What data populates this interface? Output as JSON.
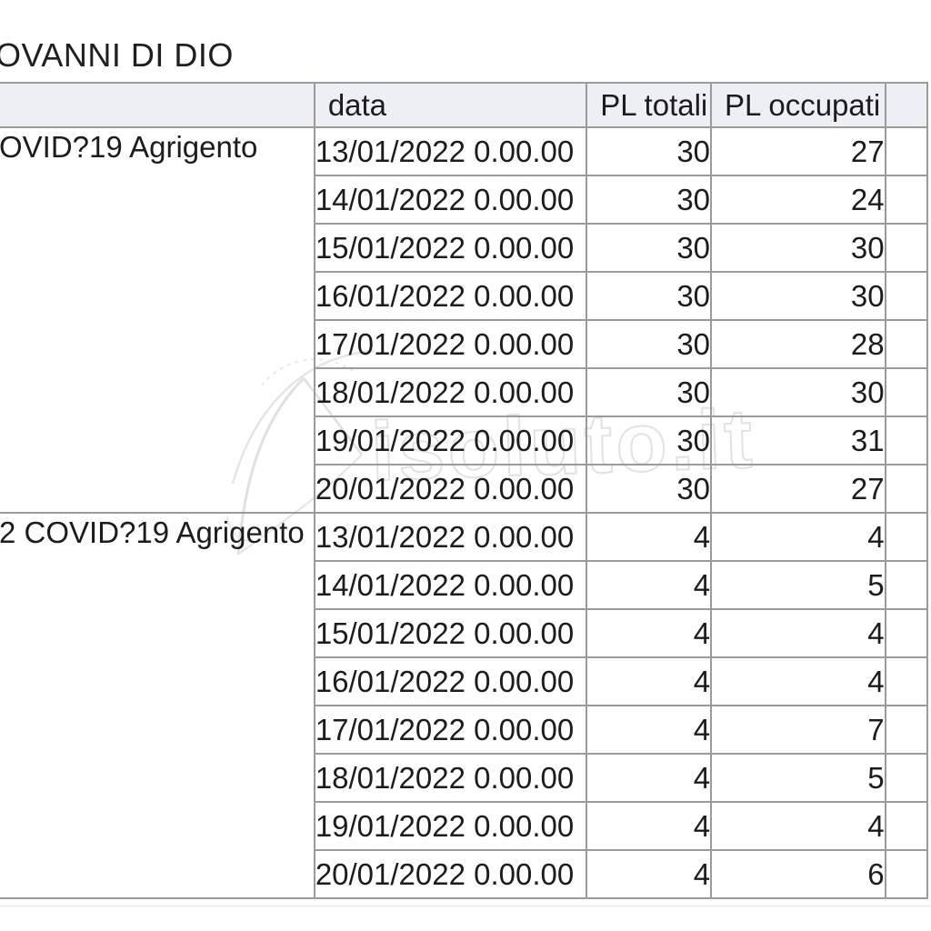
{
  "page": {
    "title": "OVANNI DI DIO"
  },
  "watermark": {
    "text": "isoluto.it",
    "logo_icon": "quill-logo-icon"
  },
  "colors": {
    "header_background": "#edeff4",
    "border": "#9b9b9b",
    "text": "#1c1c1c",
    "watermark": "#e2e2e0"
  },
  "chart_data": {
    "type": "table",
    "title": "OVANNI DI DIO",
    "columns": [
      "",
      "data",
      "PL totali",
      "PL occupati"
    ],
    "groups": [
      {
        "label": "OVID?19 Agrigento",
        "rows": [
          {
            "data": "13/01/2022 0.00.00",
            "pl_totali": "30",
            "pl_occupati": "27"
          },
          {
            "data": "14/01/2022 0.00.00",
            "pl_totali": "30",
            "pl_occupati": "24"
          },
          {
            "data": "15/01/2022 0.00.00",
            "pl_totali": "30",
            "pl_occupati": "30"
          },
          {
            "data": "16/01/2022 0.00.00",
            "pl_totali": "30",
            "pl_occupati": "30"
          },
          {
            "data": "17/01/2022 0.00.00",
            "pl_totali": "30",
            "pl_occupati": "28"
          },
          {
            "data": "18/01/2022 0.00.00",
            "pl_totali": "30",
            "pl_occupati": "30"
          },
          {
            "data": "19/01/2022 0.00.00",
            "pl_totali": "30",
            "pl_occupati": "31"
          },
          {
            "data": "20/01/2022 0.00.00",
            "pl_totali": "30",
            "pl_occupati": "27"
          }
        ]
      },
      {
        "label": "2 COVID?19 Agrigento",
        "rows": [
          {
            "data": "13/01/2022 0.00.00",
            "pl_totali": "4",
            "pl_occupati": "4"
          },
          {
            "data": "14/01/2022 0.00.00",
            "pl_totali": "4",
            "pl_occupati": "5"
          },
          {
            "data": "15/01/2022 0.00.00",
            "pl_totali": "4",
            "pl_occupati": "4"
          },
          {
            "data": "16/01/2022 0.00.00",
            "pl_totali": "4",
            "pl_occupati": "4"
          },
          {
            "data": "17/01/2022 0.00.00",
            "pl_totali": "4",
            "pl_occupati": "7"
          },
          {
            "data": "18/01/2022 0.00.00",
            "pl_totali": "4",
            "pl_occupati": "5"
          },
          {
            "data": "19/01/2022 0.00.00",
            "pl_totali": "4",
            "pl_occupati": "4"
          },
          {
            "data": "20/01/2022 0.00.00",
            "pl_totali": "4",
            "pl_occupati": "6"
          }
        ]
      }
    ]
  }
}
